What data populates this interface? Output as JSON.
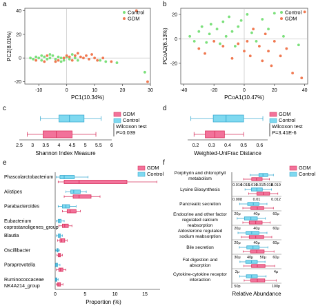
{
  "colors": {
    "control": "#7fd9f0",
    "control_stroke": "#3aaad0",
    "gdm": "#f2729a",
    "gdm_stroke": "#d8345f",
    "point_control": "#7be07b",
    "point_gdm": "#f07850"
  },
  "panels": {
    "a": "a",
    "b": "b",
    "c": "c",
    "d": "d",
    "e": "e",
    "f": "f"
  },
  "chart_data": [
    {
      "id": "a",
      "type": "scatter",
      "xlabel": "PC1(10.34%)",
      "ylabel": "PC2(8.01%)",
      "xlim": [
        -15,
        30
      ],
      "ylim": [
        -22,
        42
      ],
      "xticks": [
        -10,
        0,
        10,
        20,
        30
      ],
      "yticks": [
        -20,
        0,
        20,
        40
      ],
      "legend": [
        "Control",
        "GDM"
      ],
      "legend_position": "top-right",
      "series": [
        {
          "name": "Control",
          "points": [
            [
              -13,
              0
            ],
            [
              -12,
              -1
            ],
            [
              -11,
              1
            ],
            [
              -10,
              0
            ],
            [
              -9,
              -2
            ],
            [
              -8,
              1
            ],
            [
              -7,
              -1
            ],
            [
              -6,
              0
            ],
            [
              -5,
              2
            ],
            [
              -4,
              -1
            ],
            [
              -3,
              1
            ],
            [
              -2,
              0
            ],
            [
              -1,
              -2
            ],
            [
              0,
              1
            ],
            [
              1,
              -1
            ],
            [
              2,
              3
            ],
            [
              3,
              0
            ],
            [
              4,
              -2
            ],
            [
              -6,
              3
            ],
            [
              -9,
              2
            ],
            [
              -2,
              -3
            ],
            [
              12,
              -2
            ],
            [
              14,
              -3
            ],
            [
              18,
              -4
            ],
            [
              28,
              -12
            ]
          ]
        },
        {
          "name": "GDM",
          "points": [
            [
              -11,
              -2
            ],
            [
              -8,
              -3
            ],
            [
              -7,
              2
            ],
            [
              -4,
              -3
            ],
            [
              -3,
              -2
            ],
            [
              -1,
              0
            ],
            [
              0,
              2
            ],
            [
              1,
              1
            ],
            [
              2,
              -2
            ],
            [
              3,
              2
            ],
            [
              4,
              4
            ],
            [
              5,
              1
            ],
            [
              6,
              0
            ],
            [
              7,
              2
            ],
            [
              8,
              -1
            ],
            [
              9,
              3
            ],
            [
              10,
              0
            ],
            [
              11,
              -2
            ],
            [
              13,
              0
            ],
            [
              16,
              -3
            ],
            [
              25,
              40
            ],
            [
              29,
              -20
            ]
          ]
        }
      ]
    },
    {
      "id": "b",
      "type": "scatter",
      "xlabel": "PCoA1(10.47%)",
      "ylabel": "PCoA2(6.13%)",
      "xlim": [
        -42,
        42
      ],
      "ylim": [
        -37,
        25
      ],
      "xticks": [
        -40,
        -20,
        0,
        20,
        40
      ],
      "yticks": [
        -20,
        0,
        20
      ],
      "legend": [
        "Control",
        "GDM"
      ],
      "legend_position": "top-right",
      "series": [
        {
          "name": "Control",
          "points": [
            [
              -36,
              2
            ],
            [
              -33,
              -2
            ],
            [
              -30,
              6
            ],
            [
              -28,
              10
            ],
            [
              -25,
              -3
            ],
            [
              -23,
              4
            ],
            [
              -22,
              12
            ],
            [
              -18,
              8
            ],
            [
              -16,
              -4
            ],
            [
              -14,
              14
            ],
            [
              -12,
              2
            ],
            [
              -10,
              18
            ],
            [
              -8,
              6
            ],
            [
              -6,
              -6
            ],
            [
              -4,
              10
            ],
            [
              -2,
              15
            ],
            [
              2,
              20
            ],
            [
              5,
              5
            ],
            [
              8,
              -2
            ],
            [
              12,
              16
            ],
            [
              16,
              8
            ],
            [
              20,
              21
            ],
            [
              26,
              2
            ],
            [
              36,
              -5
            ]
          ]
        },
        {
          "name": "GDM",
          "points": [
            [
              -30,
              -8
            ],
            [
              -26,
              -12
            ],
            [
              -20,
              -2
            ],
            [
              -14,
              -6
            ],
            [
              -8,
              -16
            ],
            [
              -4,
              -4
            ],
            [
              0,
              -10
            ],
            [
              2,
              -2
            ],
            [
              4,
              -14
            ],
            [
              6,
              8
            ],
            [
              10,
              -6
            ],
            [
              12,
              -18
            ],
            [
              14,
              4
            ],
            [
              16,
              -10
            ],
            [
              18,
              -22
            ],
            [
              20,
              -2
            ],
            [
              24,
              -14
            ],
            [
              28,
              -8
            ],
            [
              32,
              -28
            ],
            [
              38,
              -32
            ],
            [
              40,
              22
            ]
          ]
        }
      ]
    },
    {
      "id": "c",
      "type": "boxplot",
      "orientation": "horizontal",
      "xlabel": "Shannon Index Measure",
      "xlim": [
        2.5,
        6
      ],
      "xticks": [
        "2.5",
        "3",
        "3.5",
        "4",
        "4.5",
        "5",
        "5.5",
        "6"
      ],
      "legend": [
        "GDM",
        "Control"
      ],
      "legend_position": "top-right",
      "stat": {
        "test": "Wilcoxon test",
        "p_label": "P",
        "p_value": "=0.039"
      },
      "series": [
        {
          "name": "Control",
          "min": 3.3,
          "q1": 4.0,
          "median": 4.4,
          "q3": 4.95,
          "max": 5.6
        },
        {
          "name": "GDM",
          "min": 2.8,
          "q1": 3.4,
          "median": 3.9,
          "q3": 4.5,
          "max": 5.4
        }
      ]
    },
    {
      "id": "d",
      "type": "boxplot",
      "orientation": "horizontal",
      "xlabel": "Weighted-UniFrac Distance",
      "xlim": [
        0.15,
        0.65
      ],
      "xticks": [
        "0.2",
        "0.3",
        "0.4",
        "0.5",
        "0.6"
      ],
      "legend": [
        "GDM",
        "Control"
      ],
      "legend_position": "top-right",
      "stat": {
        "test": "Wilcoxon test",
        "p_label": "P",
        "p_value": "=3.41E-6"
      },
      "series": [
        {
          "name": "Control",
          "min": 0.17,
          "q1": 0.31,
          "median": 0.39,
          "q3": 0.5,
          "max": 0.62
        },
        {
          "name": "GDM",
          "min": 0.19,
          "q1": 0.26,
          "median": 0.32,
          "q3": 0.38,
          "max": 0.5
        }
      ]
    },
    {
      "id": "e",
      "type": "boxplot",
      "orientation": "horizontal",
      "xlabel": "Proportion (%)",
      "xlim": [
        0,
        15
      ],
      "xticks": [
        "0",
        "5",
        "10",
        "15"
      ],
      "legend": [
        "GDM",
        "Control"
      ],
      "legend_position": "top-right",
      "categories": [
        "Phascolarctobacterium",
        "Alistipes",
        "Parabacteroides",
        "Eubacterium coprostanoligenes_group",
        "Blautia",
        "Oscillibacter",
        "Paraprevotella",
        "Ruminococcaceae NK4A214_group"
      ],
      "series": [
        {
          "name": "Control",
          "boxes": [
            [
              0.2,
              0.8,
              1.5,
              3.2,
              5.5
            ],
            [
              1.8,
              2.6,
              3.1,
              4.2,
              5.2
            ],
            [
              0.5,
              1.2,
              1.8,
              2.4,
              3.5
            ],
            [
              0.2,
              0.5,
              0.7,
              1.0,
              1.5
            ],
            [
              0.2,
              0.5,
              0.7,
              0.9,
              1.2
            ],
            [
              0.1,
              0.3,
              0.4,
              0.5,
              0.7
            ],
            [
              0,
              0.1,
              0.2,
              0.4,
              0.8
            ],
            [
              0,
              0.1,
              0.2,
              0.3,
              0.5
            ]
          ]
        },
        {
          "name": "GDM",
          "boxes": [
            [
              0.5,
              1.5,
              4.0,
              12.0,
              17.0
            ],
            [
              1.5,
              3.0,
              4.0,
              6.0,
              7.5
            ],
            [
              1.2,
              2.0,
              2.5,
              3.5,
              4.2
            ],
            [
              0.6,
              1.2,
              1.6,
              2.2,
              2.8
            ],
            [
              0.4,
              0.8,
              1.1,
              1.6,
              2.0
            ],
            [
              0.3,
              0.5,
              0.7,
              0.9,
              1.2
            ],
            [
              0.2,
              0.6,
              0.9,
              1.3,
              1.8
            ],
            [
              0.2,
              0.4,
              0.6,
              0.9,
              1.3
            ]
          ]
        }
      ]
    },
    {
      "id": "f",
      "type": "boxplot",
      "orientation": "horizontal",
      "xlabel": "Relative Abundance",
      "legend": [
        "GDM",
        "Control"
      ],
      "legend_position": "top-right",
      "pathways": [
        {
          "label": "Porphyrin and chlorophyll metabolism",
          "ticks": [
            "0.014",
            "0.015",
            "0.016",
            "0.017",
            "0.018",
            "0.019"
          ],
          "range": [
            0.0135,
            0.0195
          ],
          "control": [
            0.0156,
            0.0167,
            0.0172,
            0.0178,
            0.0185
          ],
          "gdm": [
            0.0148,
            0.0158,
            0.0164,
            0.0171,
            0.018
          ]
        },
        {
          "label": "Lysine Biosynthesis",
          "ticks": [
            "0.008",
            "0.01",
            "0.012"
          ],
          "range": [
            0.0075,
            0.0128
          ],
          "control": [
            0.0088,
            0.0095,
            0.0101,
            0.0107,
            0.0117
          ],
          "gdm": [
            0.0092,
            0.0101,
            0.0108,
            0.0115,
            0.0124
          ]
        },
        {
          "label": "Pancreatic secretion",
          "ticks": [
            "20μ",
            "40μ",
            "60μ"
          ],
          "range": [
            10,
            70
          ],
          "control": [
            18,
            28,
            35,
            42,
            52
          ],
          "gdm": [
            22,
            32,
            40,
            48,
            60
          ]
        },
        {
          "label": "Endocrine and other factor regulated calcium reabsorption",
          "ticks": [
            "20μ",
            "40μ",
            "60μ"
          ],
          "range": [
            10,
            70
          ],
          "control": [
            15,
            24,
            32,
            40,
            50
          ],
          "gdm": [
            22,
            30,
            38,
            46,
            56
          ]
        },
        {
          "label": "Aldosterone regulated sodium reabsorption",
          "ticks": [
            "20μ",
            "40μ",
            "60μ"
          ],
          "range": [
            10,
            70
          ],
          "control": [
            16,
            26,
            33,
            42,
            52
          ],
          "gdm": [
            20,
            30,
            38,
            48,
            58
          ]
        },
        {
          "label": "Bile secretion",
          "ticks": [
            "30μ",
            "40μ",
            "50μ",
            "60μ"
          ],
          "range": [
            27,
            66
          ],
          "control": [
            32,
            38,
            43,
            48,
            55
          ],
          "gdm": [
            35,
            41,
            46,
            52,
            60
          ]
        },
        {
          "label": "Fat digestion and absorption",
          "ticks": [
            "2μ",
            "4μ"
          ],
          "range": [
            0.5,
            5.5
          ],
          "control": [
            1.2,
            1.8,
            2.4,
            3.0,
            3.8
          ],
          "gdm": [
            1.6,
            2.4,
            3.0,
            3.8,
            4.8
          ]
        },
        {
          "label": "Cytokine-cytokine receptor interaction",
          "ticks": [
            "50p",
            "100p"
          ],
          "range": [
            20,
            130
          ],
          "control": [
            35,
            50,
            62,
            75,
            95
          ],
          "gdm": [
            45,
            60,
            75,
            92,
            118
          ]
        }
      ]
    }
  ]
}
